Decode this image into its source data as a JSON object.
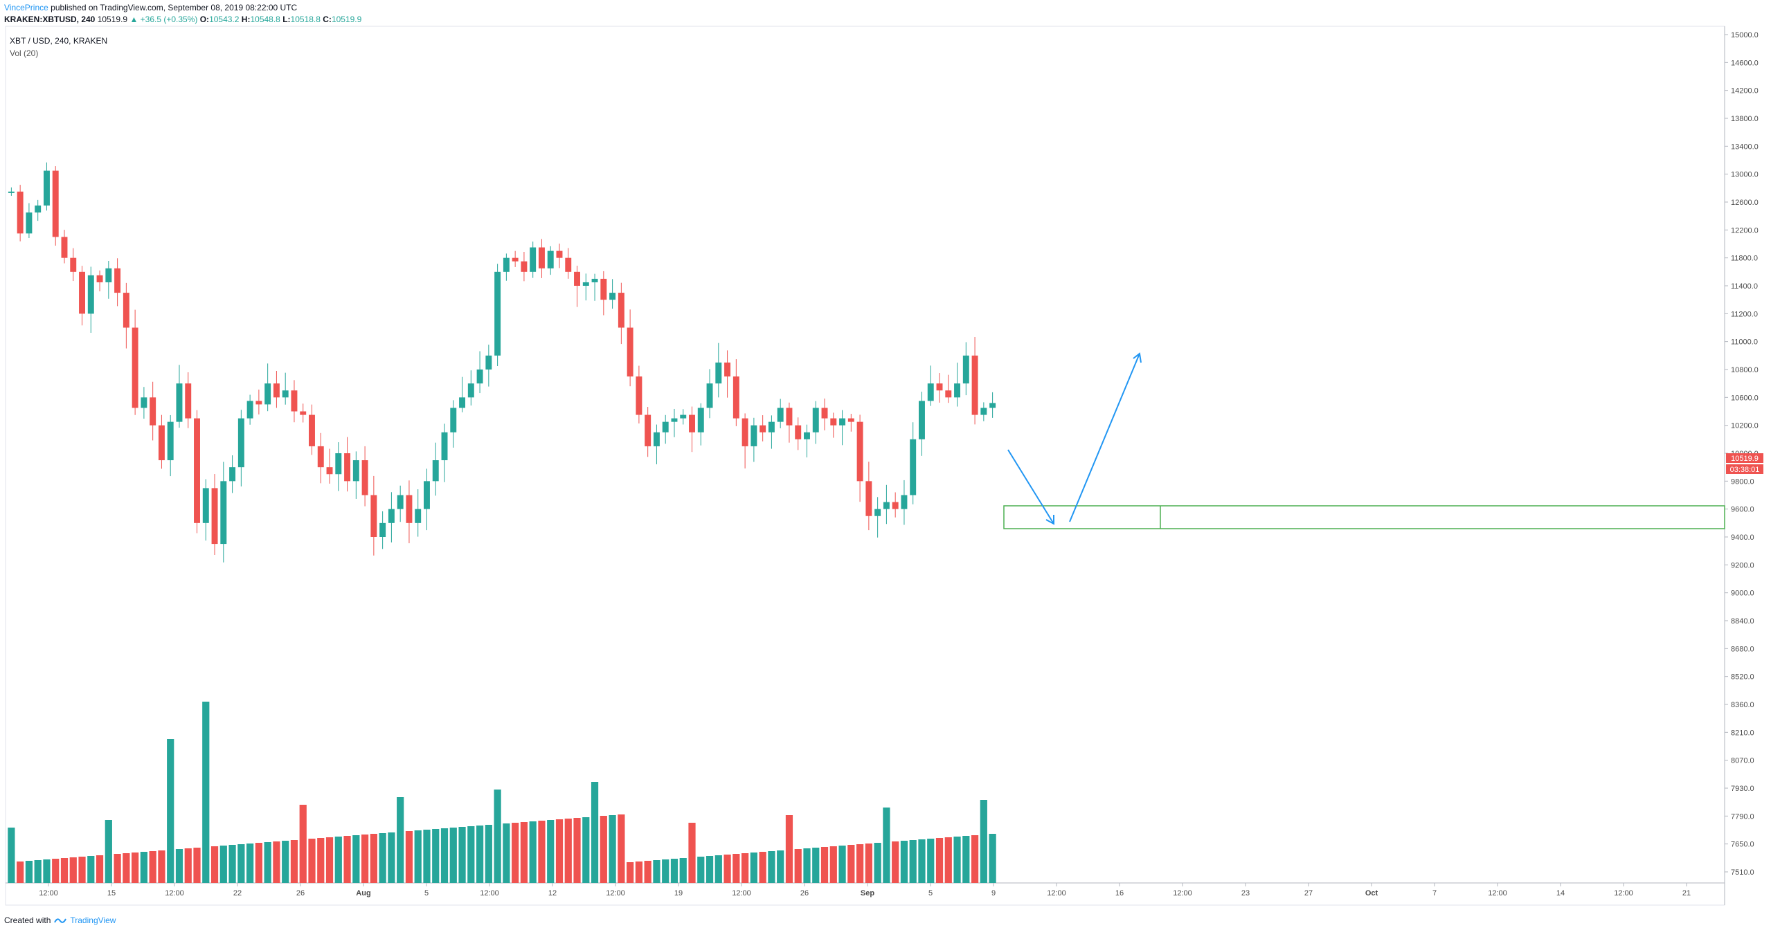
{
  "header": {
    "author": "VincePrince",
    "published": " published on TradingView.com, September 08, 2019 08:22:00 UTC"
  },
  "ticker": {
    "symbol": "KRAKEN:XBTUSD, 240",
    "last": "10519.9",
    "change": "▲ +36.5 (+0.35%)",
    "o_label": "O:",
    "o": "10543.2",
    "h_label": "H:",
    "h": "10548.8",
    "l_label": "L:",
    "l": "10518.8",
    "c_label": "C:",
    "c": "10519.9"
  },
  "legend": {
    "title": "XBT / USD, 240, KRAKEN",
    "volume": "Vol (20)"
  },
  "price_tag": {
    "price": "10519.9",
    "countdown": "03:38:01"
  },
  "footer": {
    "created": "Created with",
    "brand": "TradingView"
  },
  "colors": {
    "up": "#26a69a",
    "down": "#ef5350",
    "arrow": "#2196f3",
    "zone": "#4caf50",
    "tag": "#ef5350"
  },
  "chart_data": {
    "type": "candlestick",
    "y_ticks": [
      {
        "label": "15000.0",
        "value": 15000
      },
      {
        "label": "14600.0",
        "value": 14600
      },
      {
        "label": "14200.0",
        "value": 14200
      },
      {
        "label": "13800.0",
        "value": 13800
      },
      {
        "label": "13400.0",
        "value": 13400
      },
      {
        "label": "13000.0",
        "value": 13000
      },
      {
        "label": "12600.0",
        "value": 12600
      },
      {
        "label": "12200.0",
        "value": 12200
      },
      {
        "label": "11800.0",
        "value": 11800
      },
      {
        "label": "11400.0",
        "value": 11400
      },
      {
        "label": "11200.0",
        "value": 11200
      },
      {
        "label": "11000.0",
        "value": 11000
      },
      {
        "label": "10800.0",
        "value": 10800
      },
      {
        "label": "10600.0",
        "value": 10600
      },
      {
        "label": "10200.0",
        "value": 10200
      },
      {
        "label": "10000.0",
        "value": 10000
      },
      {
        "label": "9800.0",
        "value": 9800
      },
      {
        "label": "9600.0",
        "value": 9600
      },
      {
        "label": "9400.0",
        "value": 9400
      },
      {
        "label": "9200.0",
        "value": 9200
      },
      {
        "label": "9000.0",
        "value": 9000
      },
      {
        "label": "8840.0",
        "value": 8840
      },
      {
        "label": "8680.0",
        "value": 8680
      },
      {
        "label": "8520.0",
        "value": 8520
      },
      {
        "label": "8360.0",
        "value": 8360
      },
      {
        "label": "8210.0",
        "value": 8210
      },
      {
        "label": "8070.0",
        "value": 8070
      },
      {
        "label": "7930.0",
        "value": 7930
      },
      {
        "label": "7790.0",
        "value": 7790
      },
      {
        "label": "7650.0",
        "value": 7650
      },
      {
        "label": "7510.0",
        "value": 7510
      }
    ],
    "x_ticks": [
      "12:00",
      "15",
      "12:00",
      "22",
      "26",
      "Aug",
      "5",
      "12:00",
      "12",
      "12:00",
      "19",
      "12:00",
      "26",
      "Sep",
      "5",
      "9",
      "12:00",
      "16",
      "12:00",
      "23",
      "27",
      "Oct",
      "7",
      "12:00",
      "14",
      "12:00",
      "21"
    ],
    "x_tick_bold": [
      "Aug",
      "Sep",
      "Oct"
    ],
    "closes": [
      12750,
      12150,
      12450,
      12550,
      13050,
      12100,
      11800,
      11600,
      11200,
      11550,
      11450,
      11650,
      11350,
      11100,
      10450,
      10600,
      10200,
      9950,
      10250,
      10700,
      10300,
      9500,
      9750,
      9350,
      9800,
      9900,
      10300,
      10550,
      10500,
      10700,
      10600,
      10650,
      10400,
      10350,
      10050,
      9900,
      9850,
      10000,
      9800,
      9950,
      9700,
      9400,
      9500,
      9600,
      9700,
      9500,
      9600,
      9800,
      9950,
      10150,
      10450,
      10600,
      10700,
      10800,
      10900,
      11600,
      11800,
      11750,
      11600,
      11950,
      11650,
      11900,
      11800,
      11600,
      11400,
      11450,
      11500,
      11300,
      11350,
      11100,
      10750,
      10350,
      10050,
      10150,
      10250,
      10300,
      10350,
      10150,
      10450,
      10700,
      10850,
      10750,
      10300,
      10050,
      10200,
      10150,
      10250,
      10450,
      10200,
      10100,
      10150,
      10450,
      10300,
      10200,
      10300,
      10250,
      9800,
      9550,
      9600,
      9650,
      9600,
      9700,
      10100,
      10550,
      10700,
      10650,
      10600,
      10700,
      10900,
      10350,
      10450,
      10520
    ],
    "vol_label": "Vol (20)"
  }
}
